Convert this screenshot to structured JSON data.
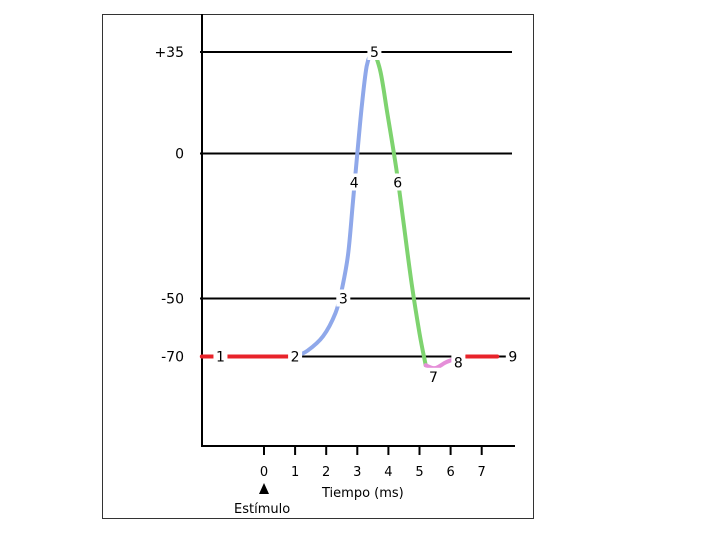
{
  "chart_data": {
    "type": "line",
    "title": "",
    "xlabel": "Tiempo (ms)",
    "ylabel": "",
    "x_ticks": [
      "0",
      "1",
      "2",
      "3",
      "4",
      "5",
      "6",
      "7"
    ],
    "y_ticks": [
      "+35",
      "0",
      "-50",
      "-70"
    ],
    "y_tick_values": [
      35,
      0,
      -50,
      -70
    ],
    "annotation": "Estímulo",
    "grid": "horizontal lines at +35, 0, -50, -70",
    "series": [
      {
        "color": "#e8232a",
        "x": [
          -2.0,
          -1.1,
          -0.2,
          0.9
        ],
        "y": [
          -70,
          -70,
          -70,
          -70
        ]
      },
      {
        "color": "#8fa8ea",
        "x": [
          1.0,
          1.4,
          1.9,
          2.3,
          2.5,
          2.7,
          2.85,
          3.0,
          3.15,
          3.3,
          3.45
        ],
        "y": [
          -70,
          -68,
          -63,
          -55,
          -47,
          -35,
          -18,
          0,
          17,
          30,
          35
        ]
      },
      {
        "color": "#7ed36f",
        "x": [
          3.55,
          3.75,
          3.95,
          4.25,
          4.5,
          4.75,
          5.0,
          5.2
        ],
        "y": [
          35,
          28,
          15,
          -5,
          -25,
          -45,
          -62,
          -73
        ]
      },
      {
        "color": "#e58ed8",
        "x": [
          5.2,
          5.5,
          5.85,
          6.1
        ],
        "y": [
          -73,
          -74,
          -72,
          -71
        ]
      },
      {
        "color": "#e8232a",
        "x": [
          6.5,
          7.0,
          7.5
        ],
        "y": [
          -70,
          -70,
          -70
        ]
      }
    ],
    "point_labels": [
      {
        "text": "1",
        "x": -1.4,
        "y": -70
      },
      {
        "text": "2",
        "x": 1.0,
        "y": -70
      },
      {
        "text": "3",
        "x": 2.55,
        "y": -50
      },
      {
        "text": "4",
        "x": 2.9,
        "y": -10
      },
      {
        "text": "5",
        "x": 3.55,
        "y": 35
      },
      {
        "text": "6",
        "x": 4.3,
        "y": -10
      },
      {
        "text": "7",
        "x": 5.45,
        "y": -77
      },
      {
        "text": "8",
        "x": 6.25,
        "y": -72
      },
      {
        "text": "9",
        "x": 8.0,
        "y": -70
      }
    ]
  }
}
